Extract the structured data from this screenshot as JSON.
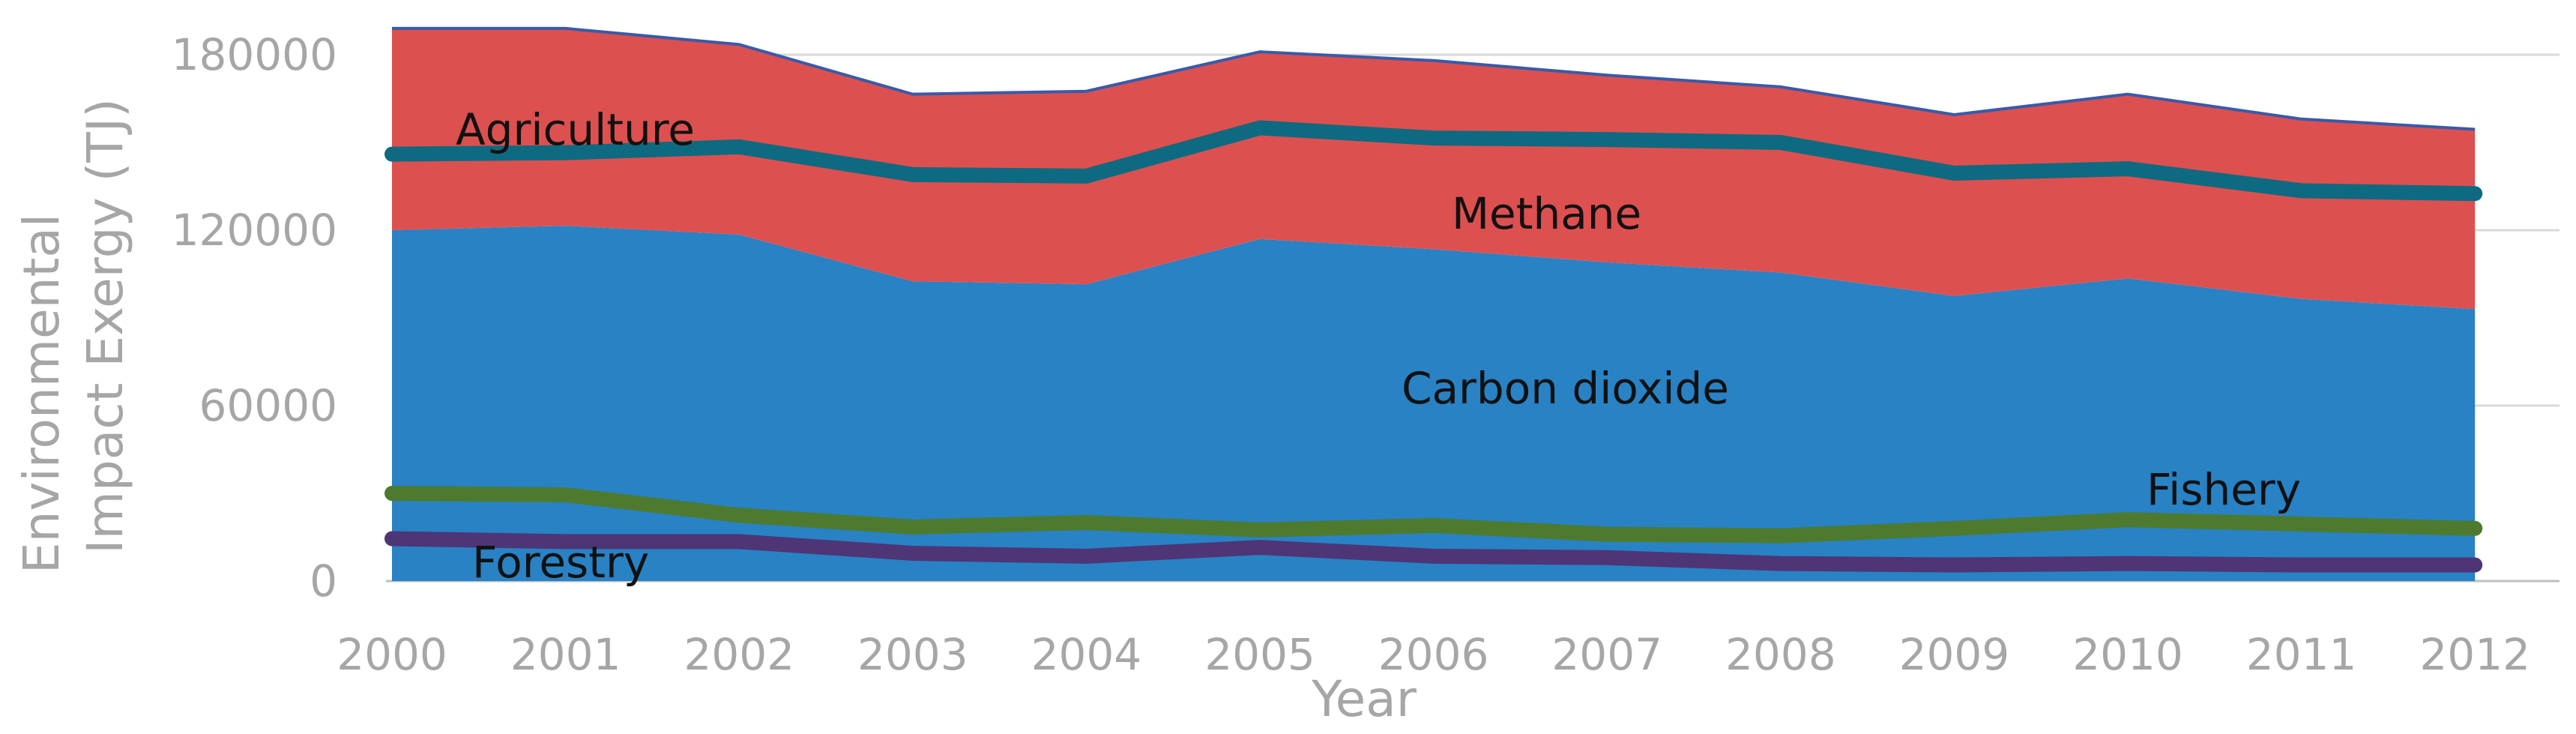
{
  "chart_data": {
    "type": "area",
    "xlabel": "Year",
    "ylabel_lines": [
      "Environmental",
      "Impact Exergy (TJ)"
    ],
    "x": [
      2000,
      2001,
      2002,
      2003,
      2004,
      2005,
      2006,
      2007,
      2008,
      2009,
      2010,
      2011,
      2012
    ],
    "ylim": [
      0,
      190000
    ],
    "yticks": [
      0,
      60000,
      120000,
      180000
    ],
    "ytick_labels": [
      "0",
      "60000",
      "120000",
      "180000"
    ],
    "grid": true,
    "legend": "none",
    "area_series": [
      {
        "key": "carbon",
        "color": "#2882c4",
        "values": [
          120000,
          121500,
          118500,
          102500,
          101500,
          117000,
          113500,
          109000,
          105500,
          97500,
          103500,
          96500,
          93000
        ]
      },
      {
        "key": "methane",
        "color": "#dd5050",
        "values": [
          69000,
          67500,
          65000,
          64000,
          66000,
          64000,
          64500,
          64000,
          63500,
          62000,
          63000,
          61500,
          61500
        ]
      }
    ],
    "line_series": [
      {
        "key": "agriculture",
        "color": "#0e6a80",
        "values": [
          146000,
          146500,
          148500,
          139000,
          138500,
          155000,
          151500,
          151000,
          150000,
          139500,
          141000,
          133500,
          132500
        ]
      },
      {
        "key": "fishery",
        "color": "#4d7a2e",
        "values": [
          30000,
          29500,
          22500,
          18500,
          20000,
          17500,
          19000,
          16000,
          15500,
          18000,
          21000,
          19500,
          18000
        ]
      },
      {
        "key": "forestry",
        "color": "#4e3576",
        "values": [
          14500,
          13500,
          13500,
          9500,
          8500,
          11500,
          8500,
          8000,
          6000,
          5500,
          6000,
          5500,
          5500
        ]
      }
    ],
    "annotations": {
      "agriculture": "Agriculture",
      "methane": "Methane",
      "carbon": "Carbon dioxide",
      "fishery": "Fishery",
      "forestry": "Forestry"
    }
  }
}
